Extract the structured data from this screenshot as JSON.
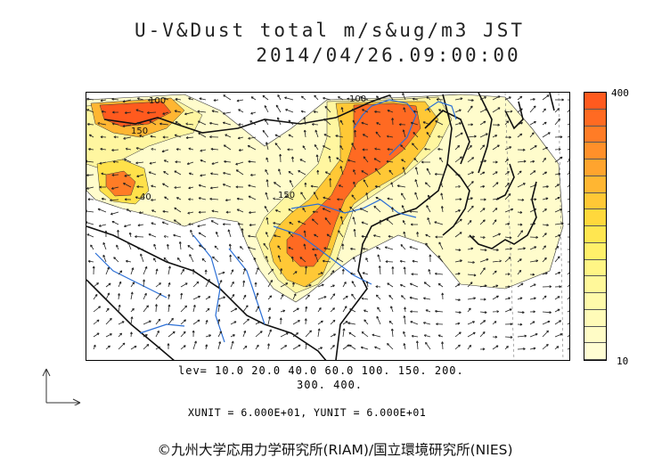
{
  "title": "U-V&Dust total m/s&ug/m3 JST",
  "datetime": "2014/04/26.09:00:00",
  "colorbar": {
    "max_label": "400",
    "min_label": "10",
    "colors": [
      "#ff5a1e",
      "#ff6a22",
      "#ff7c26",
      "#ff902a",
      "#ffa42e",
      "#ffb632",
      "#ffc836",
      "#ffd83c",
      "#ffe650",
      "#fff06a",
      "#fff585",
      "#fff89a",
      "#fffaaa",
      "#fffbb8",
      "#fffcc6",
      "#fffdd3"
    ]
  },
  "levels_line1": "lev= 10.0 20.0 40.0 60.0 100. 150. 200.",
  "levels_line2": "300. 400.",
  "units": "XUNIT = 6.000E+01, YUNIT = 6.000E+01",
  "copyright": "©九州大学応用力学研究所(RIAM)/国立環境研究所(NIES)",
  "map_labels": [
    "100",
    "150",
    "40",
    "150",
    "100"
  ],
  "colors": {
    "land_line": "#111111",
    "river": "#2b6fd6",
    "vector": "#222222"
  }
}
